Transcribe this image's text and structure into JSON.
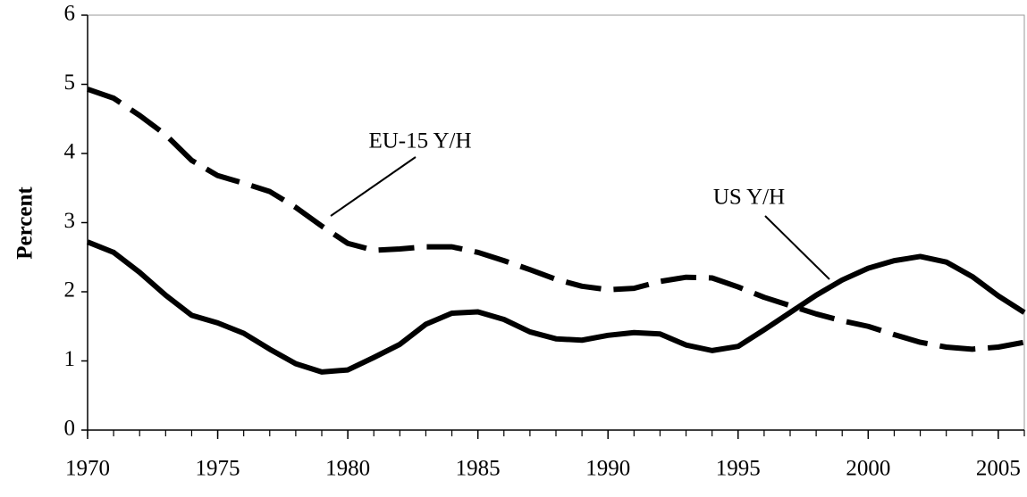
{
  "chart_data": {
    "type": "line",
    "ylabel": "Percent",
    "x": [
      1970,
      1971,
      1972,
      1973,
      1974,
      1975,
      1976,
      1977,
      1978,
      1979,
      1980,
      1981,
      1982,
      1983,
      1984,
      1985,
      1986,
      1987,
      1988,
      1989,
      1990,
      1991,
      1992,
      1993,
      1994,
      1995,
      1996,
      1997,
      1998,
      1999,
      2000,
      2001,
      2002,
      2003,
      2004,
      2005,
      2006
    ],
    "series": [
      {
        "name": "US Y/H",
        "color": "#000000",
        "style": "solid",
        "values": [
          2.72,
          2.57,
          2.28,
          1.95,
          1.66,
          1.55,
          1.4,
          1.17,
          0.96,
          0.84,
          0.87,
          1.05,
          1.24,
          1.53,
          1.69,
          1.71,
          1.6,
          1.42,
          1.32,
          1.3,
          1.37,
          1.41,
          1.39,
          1.23,
          1.15,
          1.21,
          1.45,
          1.7,
          1.95,
          2.17,
          2.34,
          2.45,
          2.51,
          2.43,
          2.22,
          1.94,
          1.7
        ]
      },
      {
        "name": "EU-15 Y/H",
        "color": "#000000",
        "style": "dashed",
        "values": [
          4.93,
          4.8,
          4.55,
          4.27,
          3.9,
          3.68,
          3.57,
          3.45,
          3.22,
          2.95,
          2.7,
          2.6,
          2.62,
          2.65,
          2.65,
          2.57,
          2.45,
          2.32,
          2.18,
          2.08,
          2.03,
          2.05,
          2.15,
          2.21,
          2.2,
          2.07,
          1.92,
          1.8,
          1.68,
          1.58,
          1.5,
          1.38,
          1.27,
          1.2,
          1.17,
          1.2,
          1.27
        ]
      }
    ],
    "xlim": [
      1970,
      2006
    ],
    "xticks": [
      1970,
      1975,
      1980,
      1985,
      1990,
      1995,
      2000,
      2005
    ],
    "ylim": [
      0,
      6
    ],
    "yticks": [
      0,
      1,
      2,
      3,
      4,
      5,
      6
    ],
    "grid": false
  }
}
